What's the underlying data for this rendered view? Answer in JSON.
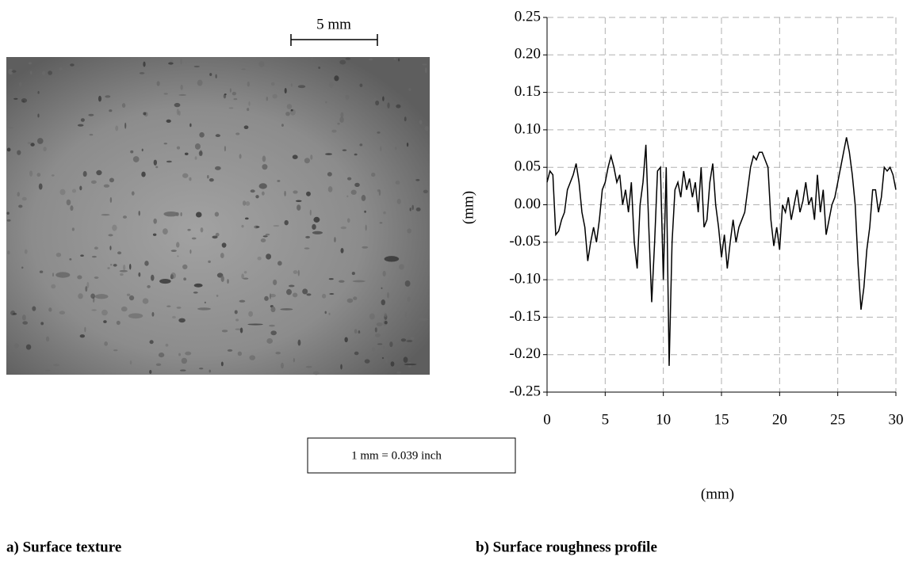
{
  "image_panel": {
    "scale_bar": "5 mm",
    "note": "1 mm = 0.039 inch",
    "caption": "a) Surface texture"
  },
  "chart_data": {
    "type": "line",
    "caption": "b) Surface roughness profile",
    "x_label": "(mm)",
    "y_label": "(mm)",
    "x": [
      0,
      0.25,
      0.5,
      0.75,
      1,
      1.25,
      1.5,
      1.75,
      2,
      2.25,
      2.5,
      2.75,
      3,
      3.25,
      3.5,
      3.75,
      4,
      4.25,
      4.5,
      4.75,
      5,
      5.25,
      5.5,
      5.75,
      6,
      6.25,
      6.5,
      6.75,
      7,
      7.25,
      7.5,
      7.75,
      8,
      8.25,
      8.5,
      8.75,
      9,
      9.25,
      9.5,
      9.75,
      10,
      10.25,
      10.5,
      10.75,
      11,
      11.25,
      11.5,
      11.75,
      12,
      12.25,
      12.5,
      12.75,
      13,
      13.25,
      13.5,
      13.75,
      14,
      14.25,
      14.5,
      14.75,
      15,
      15.25,
      15.5,
      15.75,
      16,
      16.25,
      16.5,
      16.75,
      17,
      17.25,
      17.5,
      17.75,
      18,
      18.25,
      18.5,
      18.75,
      19,
      19.25,
      19.5,
      19.75,
      20,
      20.25,
      20.5,
      20.75,
      21,
      21.25,
      21.5,
      21.75,
      22,
      22.25,
      22.5,
      22.75,
      23,
      23.25,
      23.5,
      23.75,
      24,
      24.25,
      24.5,
      24.75,
      25,
      25.25,
      25.5,
      25.75,
      26,
      26.25,
      26.5,
      26.75,
      27,
      27.25,
      27.5,
      27.75,
      28,
      28.25,
      28.5,
      28.75,
      29,
      29.25,
      29.5,
      29.75,
      30
    ],
    "series": [
      {
        "color": "#000000",
        "values": [
          0.03,
          0.045,
          0.04,
          -0.04,
          -0.035,
          -0.02,
          -0.01,
          0.02,
          0.03,
          0.04,
          0.055,
          0.03,
          -0.01,
          -0.03,
          -0.075,
          -0.05,
          -0.03,
          -0.05,
          -0.02,
          0.02,
          0.03,
          0.05,
          0.065,
          0.05,
          0.03,
          0.04,
          0,
          0.02,
          -0.01,
          0.03,
          -0.05,
          -0.085,
          0,
          0.03,
          0.08,
          -0.03,
          -0.13,
          -0.05,
          0.045,
          0.05,
          -0.1,
          0.05,
          -0.215,
          -0.05,
          0.02,
          0.03,
          0.01,
          0.045,
          0.02,
          0.035,
          0.01,
          0.03,
          -0.01,
          0.05,
          -0.03,
          -0.02,
          0.03,
          0.055,
          0,
          -0.03,
          -0.07,
          -0.04,
          -0.085,
          -0.05,
          -0.02,
          -0.05,
          -0.03,
          -0.02,
          -0.01,
          0.02,
          0.05,
          0.065,
          0.06,
          0.07,
          0.07,
          0.06,
          0.05,
          -0.02,
          -0.055,
          -0.03,
          -0.06,
          0,
          -0.01,
          0.01,
          -0.02,
          0,
          0.02,
          -0.01,
          0.005,
          0.03,
          0,
          0.01,
          -0.02,
          0.04,
          -0.01,
          0.02,
          -0.04,
          -0.02,
          0,
          0.01,
          0.03,
          0.05,
          0.07,
          0.09,
          0.07,
          0.04,
          0,
          -0.08,
          -0.14,
          -0.11,
          -0.06,
          -0.03,
          0.02,
          0.02,
          -0.01,
          0.01,
          0.05,
          0.045,
          0.05,
          0.04,
          0.02
        ]
      }
    ],
    "xlim": [
      0,
      30
    ],
    "xticks": [
      0,
      5,
      10,
      15,
      20,
      25,
      30
    ],
    "ylim": [
      -0.25,
      0.25
    ],
    "yticks": [
      {
        "value": -0.25,
        "label": "-0.25"
      },
      {
        "value": -0.2,
        "label": "-0.20"
      },
      {
        "value": -0.15,
        "label": "-0.15"
      },
      {
        "value": -0.1,
        "label": "-0.10"
      },
      {
        "value": -0.05,
        "label": "-0.05"
      },
      {
        "value": 0,
        "label": "0.00"
      },
      {
        "value": 0.05,
        "label": "0.05"
      },
      {
        "value": 0.1,
        "label": "0.10"
      },
      {
        "value": 0.15,
        "label": "0.15"
      },
      {
        "value": 0.2,
        "label": "0.20"
      },
      {
        "value": 0.25,
        "label": "0.25"
      }
    ],
    "grid": true
  }
}
